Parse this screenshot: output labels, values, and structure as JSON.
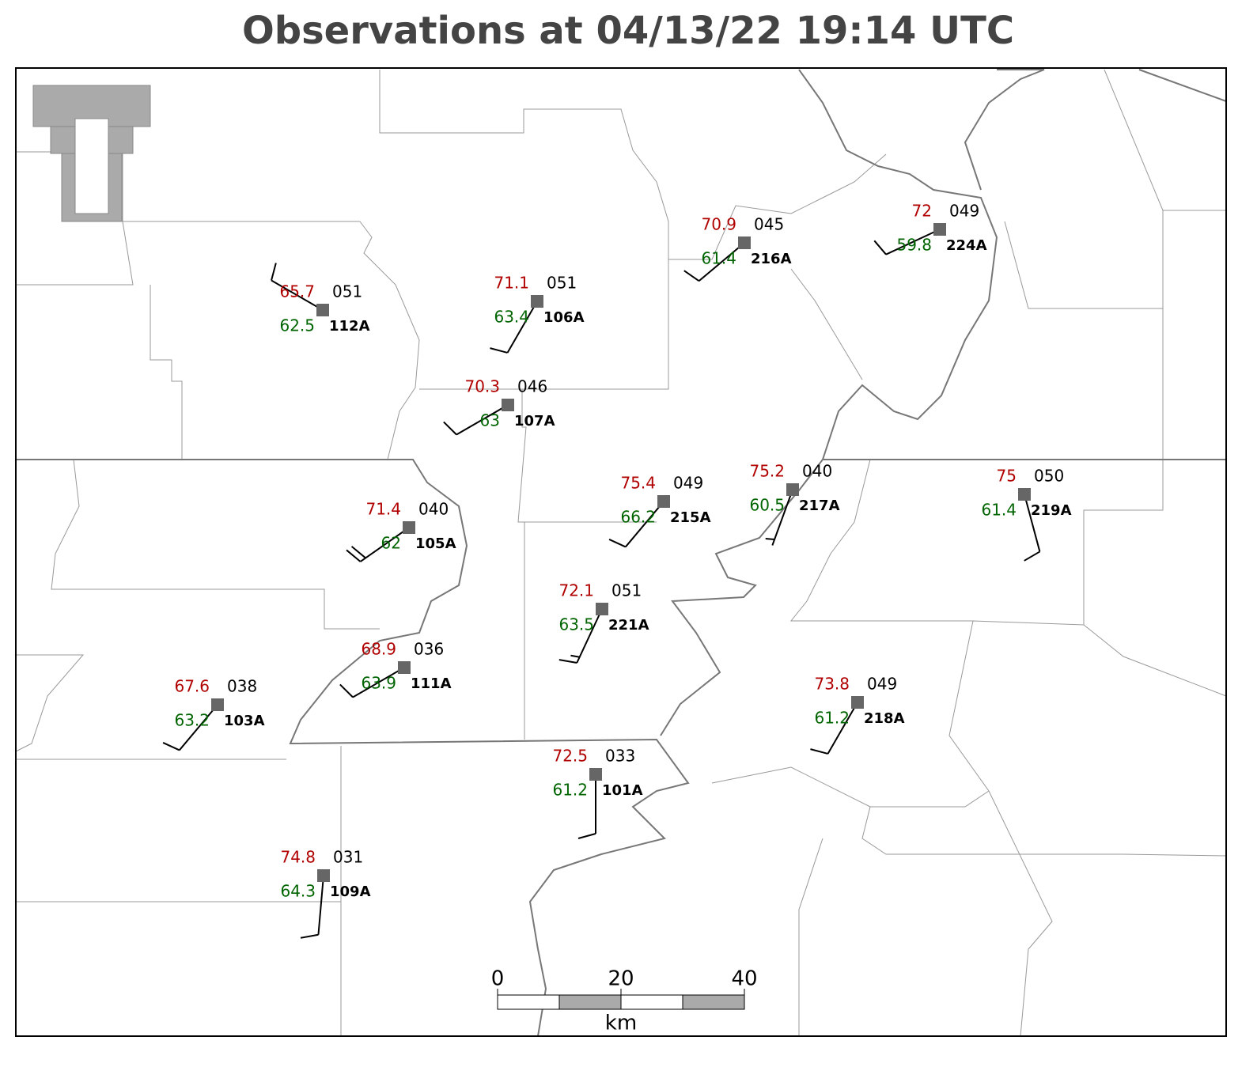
{
  "title": "Observations at 04/13/22 19:14 UTC",
  "stations": [
    {
      "id": "112A",
      "temperature": 65.7,
      "dewpoint": 62.5,
      "pressure": "051",
      "wind_direction": 300,
      "wind_speed": 10
    },
    {
      "id": "106A",
      "temperature": 71.1,
      "dewpoint": 63.4,
      "pressure": "051",
      "wind_direction": 210,
      "wind_speed": 10
    },
    {
      "id": "107A",
      "temperature": 70.3,
      "dewpoint": 63.0,
      "pressure": "046",
      "wind_direction": 240,
      "wind_speed": 10
    },
    {
      "id": "216A",
      "temperature": 70.9,
      "dewpoint": 61.4,
      "pressure": "045",
      "wind_direction": 230,
      "wind_speed": 10
    },
    {
      "id": "224A",
      "temperature": 72.0,
      "dewpoint": 59.8,
      "pressure": "049",
      "wind_direction": 245,
      "wind_speed": 10
    },
    {
      "id": "105A",
      "temperature": 71.4,
      "dewpoint": 62.0,
      "pressure": "040",
      "wind_direction": 235,
      "wind_speed": 20
    },
    {
      "id": "215A",
      "temperature": 75.4,
      "dewpoint": 66.2,
      "pressure": "049",
      "wind_direction": 220,
      "wind_speed": 10
    },
    {
      "id": "217A",
      "temperature": 75.2,
      "dewpoint": 60.5,
      "pressure": "040",
      "wind_direction": 200,
      "wind_speed": 5
    },
    {
      "id": "219A",
      "temperature": 75.0,
      "dewpoint": 61.4,
      "pressure": "050",
      "wind_direction": 165,
      "wind_speed": 10
    },
    {
      "id": "221A",
      "temperature": 72.1,
      "dewpoint": 63.5,
      "pressure": "051",
      "wind_direction": 205,
      "wind_speed": 15
    },
    {
      "id": "111A",
      "temperature": 68.9,
      "dewpoint": 63.9,
      "pressure": "036",
      "wind_direction": 240,
      "wind_speed": 10
    },
    {
      "id": "103A",
      "temperature": 67.6,
      "dewpoint": 63.2,
      "pressure": "038",
      "wind_direction": 220,
      "wind_speed": 10
    },
    {
      "id": "218A",
      "temperature": 73.8,
      "dewpoint": 61.2,
      "pressure": "049",
      "wind_direction": 210,
      "wind_speed": 10
    },
    {
      "id": "101A",
      "temperature": 72.5,
      "dewpoint": 61.2,
      "pressure": "033",
      "wind_direction": 180,
      "wind_speed": 10
    },
    {
      "id": "109A",
      "temperature": 74.8,
      "dewpoint": 64.3,
      "pressure": "031",
      "wind_direction": 185,
      "wind_speed": 10
    }
  ],
  "scale_bar": {
    "ticks": [
      0,
      20,
      40
    ],
    "unit": "km"
  }
}
